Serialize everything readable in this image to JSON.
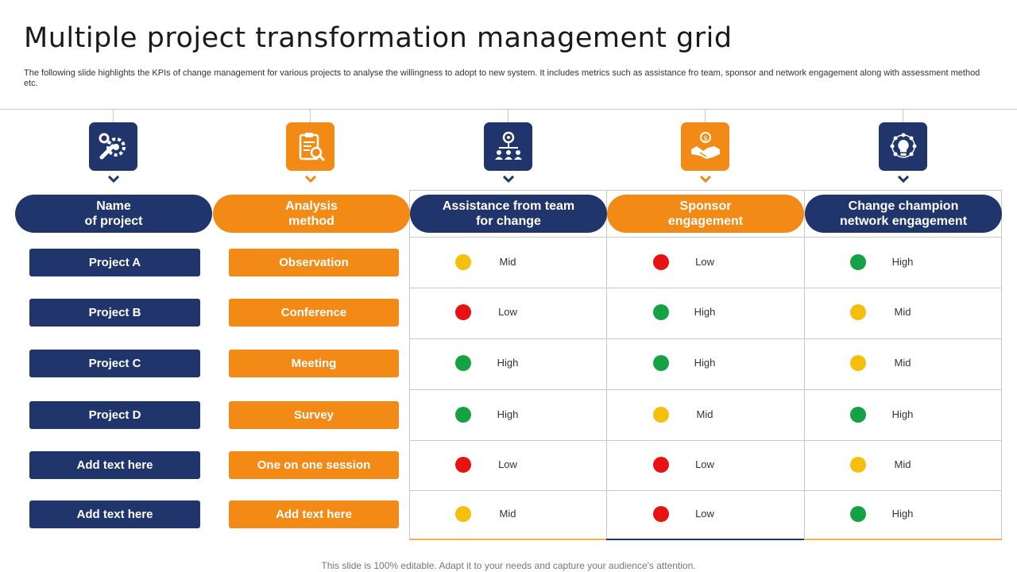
{
  "slide": {
    "title": "Multiple project transformation management grid",
    "subtitle": "The following slide highlights the KPIs of change management for various projects to analyse the willingness to adopt to new system. It includes metrics such as assistance fro team, sponsor and network engagement along with assessment method etc.",
    "footer": "This slide is 100% editable. Adapt it to your needs and capture your audience's attention."
  },
  "columns": [
    {
      "label": "Name\nof project",
      "icon": "wrench-gear-icon",
      "color": "#1f356b"
    },
    {
      "label": "Analysis\nmethod",
      "icon": "clipboard-magnifier-icon",
      "color": "#f48a16"
    },
    {
      "label": "Assistance from team\nfor change",
      "icon": "team-network-icon",
      "color": "#1f356b"
    },
    {
      "label": "Sponsor\nengagement",
      "icon": "handshake-dollar-icon",
      "color": "#f48a16"
    },
    {
      "label": "Change champion\nnetwork engagement",
      "icon": "lightbulb-network-icon",
      "color": "#1f356b"
    }
  ],
  "status_colors": {
    "High": "#14a245",
    "Mid": "#f7bf0d",
    "Low": "#e81212"
  },
  "rows": [
    {
      "project": "Project A",
      "method": "Observation",
      "assistance": "Mid",
      "sponsor": "Low",
      "network": "High"
    },
    {
      "project": "Project B",
      "method": "Conference",
      "assistance": "Low",
      "sponsor": "High",
      "network": "Mid"
    },
    {
      "project": "Project C",
      "method": "Meeting",
      "assistance": "High",
      "sponsor": "High",
      "network": "Mid"
    },
    {
      "project": "Project D",
      "method": "Survey",
      "assistance": "High",
      "sponsor": "Mid",
      "network": "High"
    },
    {
      "project": "Add text here",
      "method": "One on one session",
      "assistance": "Low",
      "sponsor": "Low",
      "network": "Mid"
    },
    {
      "project": "Add text here",
      "method": "Add text here",
      "assistance": "Mid",
      "sponsor": "Low",
      "network": "High"
    }
  ]
}
